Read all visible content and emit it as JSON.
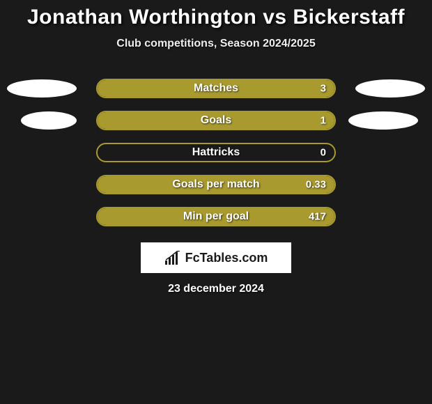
{
  "title": "Jonathan Worthington vs Bickerstaff",
  "subtitle": "Club competitions, Season 2024/2025",
  "brand": "FcTables.com",
  "date": "23 december 2024",
  "bar_border_color": "#a89a2e",
  "bar_fill_color": "#a89a2e",
  "background_color": "#1a1a1a",
  "oval_color": "#ffffff",
  "stats": [
    {
      "label": "Matches",
      "value": "3",
      "fill_pct": 100,
      "left_oval": true,
      "right_oval": true,
      "small_ovals": false
    },
    {
      "label": "Goals",
      "value": "1",
      "fill_pct": 100,
      "left_oval": true,
      "right_oval": true,
      "small_ovals": true
    },
    {
      "label": "Hattricks",
      "value": "0",
      "fill_pct": 0,
      "left_oval": false,
      "right_oval": false,
      "small_ovals": false
    },
    {
      "label": "Goals per match",
      "value": "0.33",
      "fill_pct": 100,
      "left_oval": false,
      "right_oval": false,
      "small_ovals": false
    },
    {
      "label": "Min per goal",
      "value": "417",
      "fill_pct": 100,
      "left_oval": false,
      "right_oval": false,
      "small_ovals": false
    }
  ]
}
